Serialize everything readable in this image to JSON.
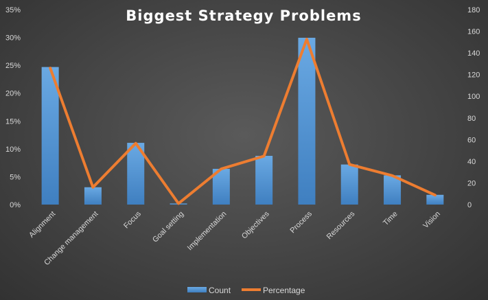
{
  "chart_data": {
    "type": "bar",
    "title": "Biggest Strategy Problems",
    "categories": [
      "Alignment",
      "Change management",
      "Focus",
      "Goal setting",
      "Implementation",
      "Objectives",
      "Process",
      "Resources",
      "Time",
      "Vision"
    ],
    "series": [
      {
        "name": "Count",
        "type": "bar",
        "axis": "right",
        "values": [
          127,
          16,
          57,
          1,
          33,
          45,
          154,
          37,
          27,
          9
        ]
      },
      {
        "name": "Percentage",
        "type": "line",
        "axis": "left",
        "values": [
          0.245,
          0.031,
          0.11,
          0.002,
          0.064,
          0.087,
          0.297,
          0.072,
          0.052,
          0.017
        ]
      }
    ],
    "y_left": {
      "ylim": [
        0,
        0.35
      ],
      "ticks": [
        0,
        0.05,
        0.1,
        0.15,
        0.2,
        0.25,
        0.3,
        0.35
      ],
      "tick_labels": [
        "0%",
        "5%",
        "10%",
        "15%",
        "20%",
        "25%",
        "30%",
        "35%"
      ]
    },
    "y_right": {
      "ylim": [
        0,
        180
      ],
      "ticks": [
        0,
        20,
        40,
        60,
        80,
        100,
        120,
        140,
        160,
        180
      ],
      "tick_labels": [
        "0",
        "20",
        "40",
        "60",
        "80",
        "100",
        "120",
        "140",
        "160",
        "180"
      ]
    },
    "legend": {
      "position": "bottom",
      "entries": [
        "Count",
        "Percentage"
      ]
    },
    "grid": false,
    "colors": {
      "bar": "#5b9bd5",
      "line": "#ed7d31",
      "text": "#d9d9d9",
      "title": "#ffffff"
    }
  }
}
